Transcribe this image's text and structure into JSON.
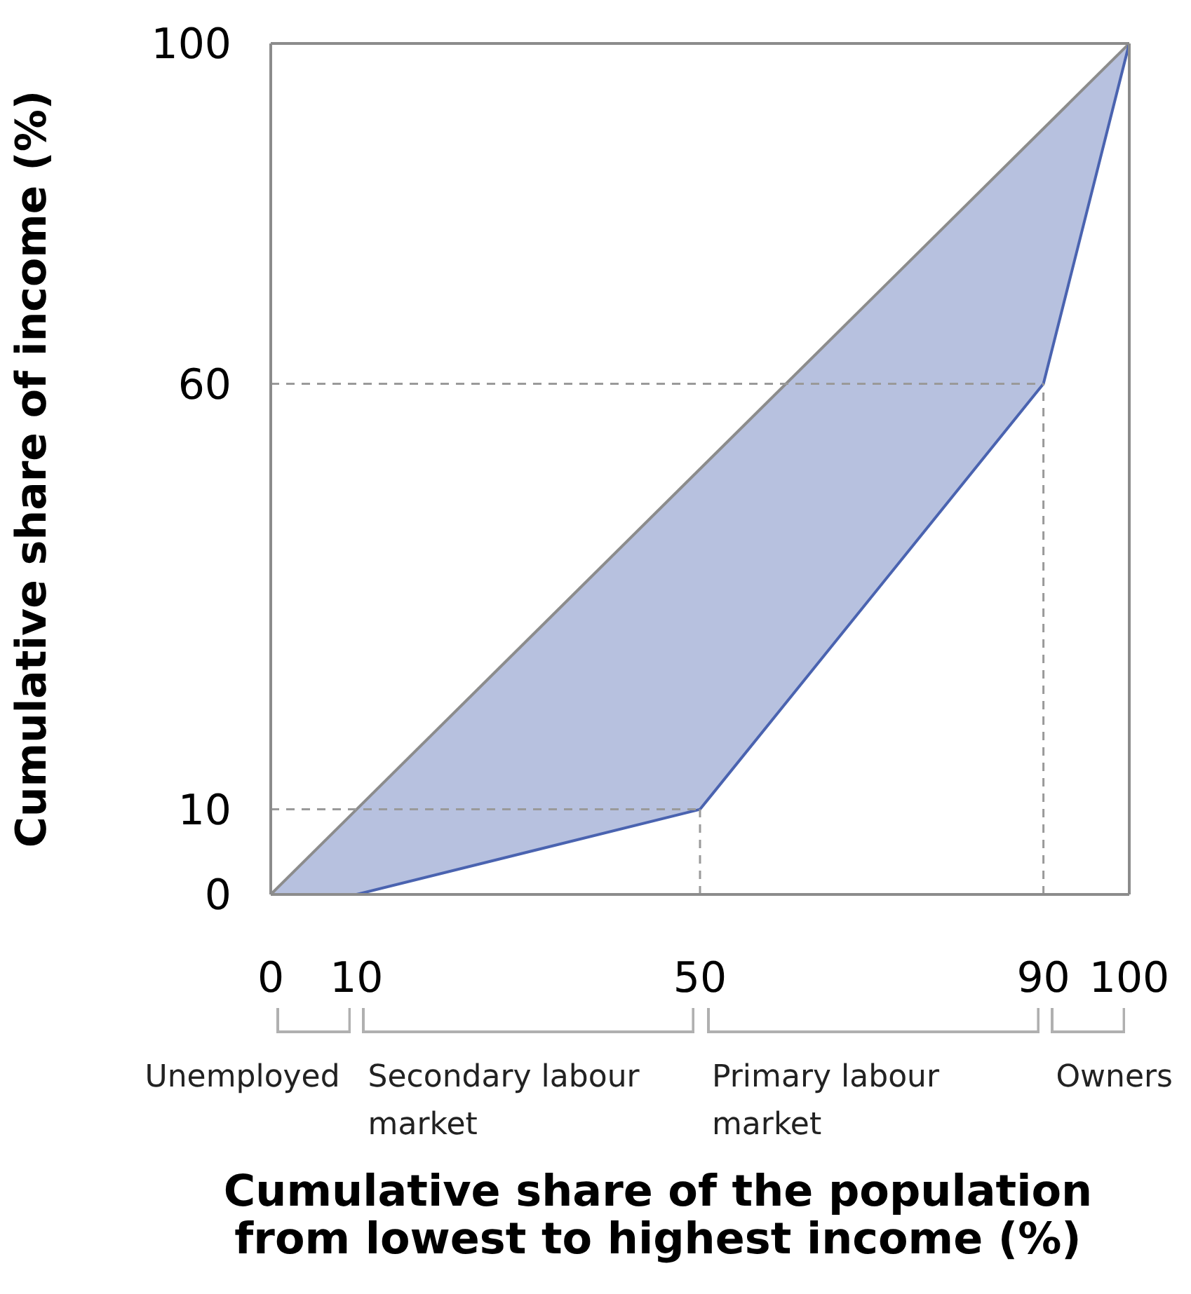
{
  "chart_data": {
    "type": "line",
    "xlabel": "Cumulative share of the population\nfrom lowest to highest income (%)",
    "ylabel": "Cumulative share of income (%)",
    "xlim": [
      0,
      100
    ],
    "ylim": [
      0,
      100
    ],
    "xticks": [
      0,
      10,
      50,
      90,
      100
    ],
    "yticks": [
      0,
      10,
      60,
      100
    ],
    "marker": "none",
    "line_style": "solid",
    "series": [
      {
        "color": "#8c8c8c",
        "x": [
          0,
          100
        ],
        "values": [
          0,
          100
        ]
      },
      {
        "color": "#4a63b0",
        "x": [
          0,
          10,
          50,
          90,
          100
        ],
        "values": [
          0,
          0,
          10,
          60,
          100
        ],
        "lower": [
          0,
          0,
          10,
          60,
          100
        ],
        "upper": [
          0,
          10,
          50,
          90,
          100
        ]
      }
    ],
    "ref_lines": [
      {
        "axis": "y",
        "value": 10,
        "color": "#9a9a9a",
        "line_style": "dashed"
      },
      {
        "axis": "y",
        "value": 60,
        "color": "#9a9a9a",
        "line_style": "dashed"
      },
      {
        "axis": "x",
        "value": 50,
        "color": "#9a9a9a",
        "line_style": "dashed"
      },
      {
        "axis": "x",
        "value": 90,
        "color": "#9a9a9a",
        "line_style": "dashed"
      }
    ],
    "annotations": [
      "Unemployed",
      "Secondary labour market",
      "Primary labour market",
      "Owners"
    ]
  }
}
